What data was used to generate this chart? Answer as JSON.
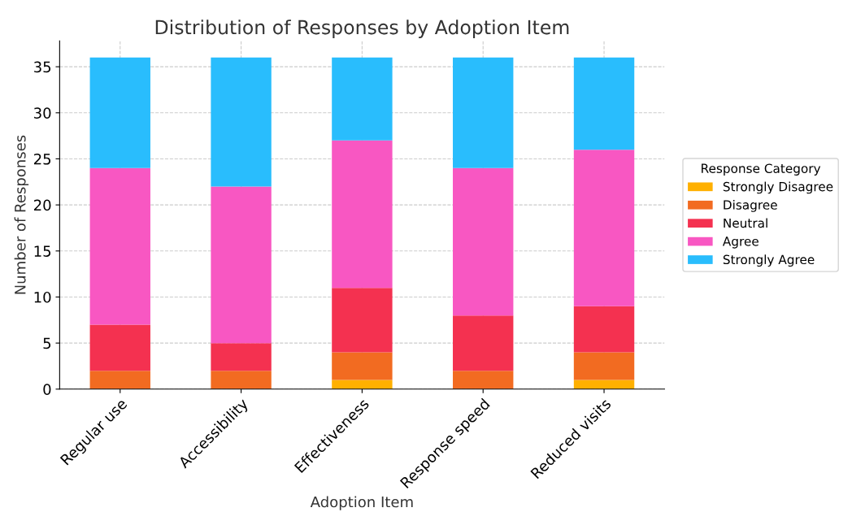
{
  "chart_data": {
    "type": "bar",
    "stacked": true,
    "title": "Distribution of Responses by Adoption Item",
    "xlabel": "Adoption Item",
    "ylabel": "Number of Responses",
    "legend_title": "Response Category",
    "categories": [
      "Regular use",
      "Accessibility",
      "Effectiveness",
      "Response speed",
      "Reduced visits"
    ],
    "series": [
      {
        "name": "Strongly Disagree",
        "color": "#ffb000",
        "values": [
          0,
          0,
          1,
          0,
          1
        ]
      },
      {
        "name": "Disagree",
        "color": "#f26b21",
        "values": [
          2,
          2,
          3,
          2,
          3
        ]
      },
      {
        "name": "Neutral",
        "color": "#f43150",
        "values": [
          5,
          3,
          7,
          6,
          5
        ]
      },
      {
        "name": "Agree",
        "color": "#f857c2",
        "values": [
          17,
          17,
          16,
          16,
          17
        ]
      },
      {
        "name": "Strongly Agree",
        "color": "#29bdfd",
        "values": [
          12,
          14,
          9,
          12,
          10
        ]
      }
    ],
    "ylim": [
      0,
      37.8
    ],
    "yticks": [
      0,
      5,
      10,
      15,
      20,
      25,
      30,
      35
    ],
    "grid": true,
    "legend": "right"
  }
}
